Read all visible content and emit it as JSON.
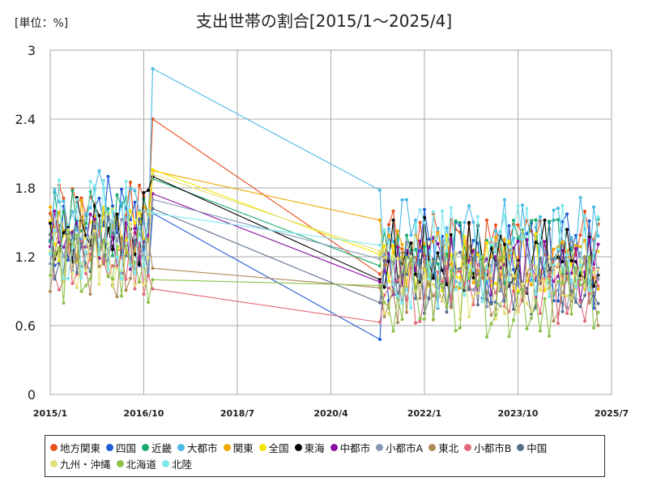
{
  "chart_data": {
    "type": "line",
    "title": "支出世帯の割合[2015/1～2025/4]",
    "unit_label": "[単位：%]",
    "y_ticks": [
      "0",
      "0.6",
      "1.2",
      "1.8",
      "2.4",
      "3"
    ],
    "x_ticks": [
      "2015/1",
      "2016/10",
      "2018/7",
      "2020/4",
      "2022/1",
      "2023/10",
      "2025/7"
    ],
    "ylim": [
      0,
      3
    ],
    "xlim": [
      "2015/1",
      "2025/7"
    ],
    "grid": true,
    "legend_position": "bottom",
    "series": [
      {
        "name": "地方関東",
        "color": "#e8501e",
        "seed": 1,
        "base": 1.55,
        "amp": 0.3,
        "val_2016_12": 2.4,
        "val_2021_3": 1.05
      },
      {
        "name": "四国",
        "color": "#1f5bd3",
        "seed": 2,
        "base": 1.45,
        "amp": 0.45,
        "val_2016_12": 1.58,
        "val_2021_3": 0.48
      },
      {
        "name": "近畿",
        "color": "#1aaa6e",
        "seed": 3,
        "base": 1.5,
        "amp": 0.3,
        "val_2016_12": 1.88,
        "val_2021_3": 1.12
      },
      {
        "name": "大都市",
        "color": "#4ab9e6",
        "seed": 4,
        "base": 1.6,
        "amp": 0.4,
        "val_2016_12": 2.84,
        "val_2021_3": 1.78
      },
      {
        "name": "関東",
        "color": "#f0a800",
        "seed": 5,
        "base": 1.4,
        "amp": 0.3,
        "val_2016_12": 1.95,
        "val_2021_3": 1.52
      },
      {
        "name": "全国",
        "color": "#f5e600",
        "seed": 6,
        "base": 1.4,
        "amp": 0.25,
        "val_2016_12": 1.96,
        "val_2021_3": 1.22
      },
      {
        "name": "東海",
        "color": "#000000",
        "seed": 7,
        "base": 1.45,
        "amp": 0.35,
        "val_2016_12": 1.9,
        "val_2021_3": 1.0
      },
      {
        "name": "中都市",
        "color": "#8a10a0",
        "seed": 8,
        "base": 1.35,
        "amp": 0.3,
        "val_2016_12": 1.75,
        "val_2021_3": 0.98
      },
      {
        "name": "小都市A",
        "color": "#8597b5",
        "seed": 9,
        "base": 1.3,
        "amp": 0.3,
        "val_2016_12": 1.7,
        "val_2021_3": 1.18
      },
      {
        "name": "東北",
        "color": "#b08a5a",
        "seed": 10,
        "base": 1.2,
        "amp": 0.35,
        "val_2016_12": 1.1,
        "val_2021_3": 0.93
      },
      {
        "name": "小都市B",
        "color": "#e06a7a",
        "seed": 11,
        "base": 1.15,
        "amp": 0.3,
        "val_2016_12": 0.92,
        "val_2021_3": 0.63
      },
      {
        "name": "中国",
        "color": "#5c6e8c",
        "seed": 12,
        "base": 1.25,
        "amp": 0.3,
        "val_2016_12": 1.62,
        "val_2021_3": 0.8
      },
      {
        "name": "九州・沖縄",
        "color": "#e2e07a",
        "seed": 13,
        "base": 1.2,
        "amp": 0.3,
        "val_2016_12": 1.92,
        "val_2021_3": 1.25
      },
      {
        "name": "北海道",
        "color": "#8cc24a",
        "seed": 14,
        "base": 1.1,
        "amp": 0.35,
        "val_2016_12": 1.0,
        "val_2021_3": 0.95
      },
      {
        "name": "北陸",
        "color": "#7de8ee",
        "seed": 15,
        "base": 1.45,
        "amp": 0.45,
        "val_2016_12": 1.58,
        "val_2021_3": 1.3
      }
    ]
  }
}
